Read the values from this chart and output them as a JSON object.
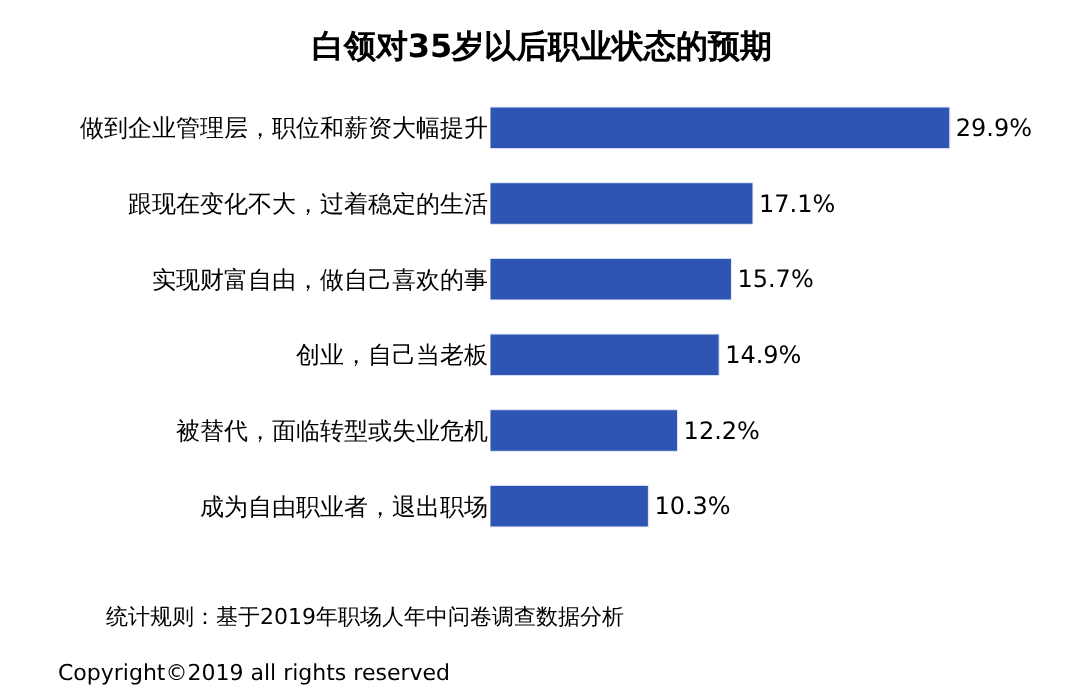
{
  "chart_data": {
    "type": "bar",
    "orientation": "horizontal",
    "title": "白领对35岁以后职业状态的预期",
    "categories": [
      "做到企业管理层，职位和薪资大幅提升",
      "跟现在变化不大，过着稳定的生活",
      "实现财富自由，做自己喜欢的事",
      "创业，自己当老板",
      "被替代，面临转型或失业危机",
      "成为自由职业者，退出职场"
    ],
    "values": [
      29.9,
      17.1,
      15.7,
      14.9,
      12.2,
      10.3
    ],
    "value_labels": [
      "29.9%",
      "17.1%",
      "15.7%",
      "14.9%",
      "12.2%",
      "10.3%"
    ],
    "color": "#2f55b4",
    "annotations": [
      "统计规则：基于2019年职场人年中问卷调查数据分析",
      "Copyright©2019 all rights reserved"
    ]
  }
}
